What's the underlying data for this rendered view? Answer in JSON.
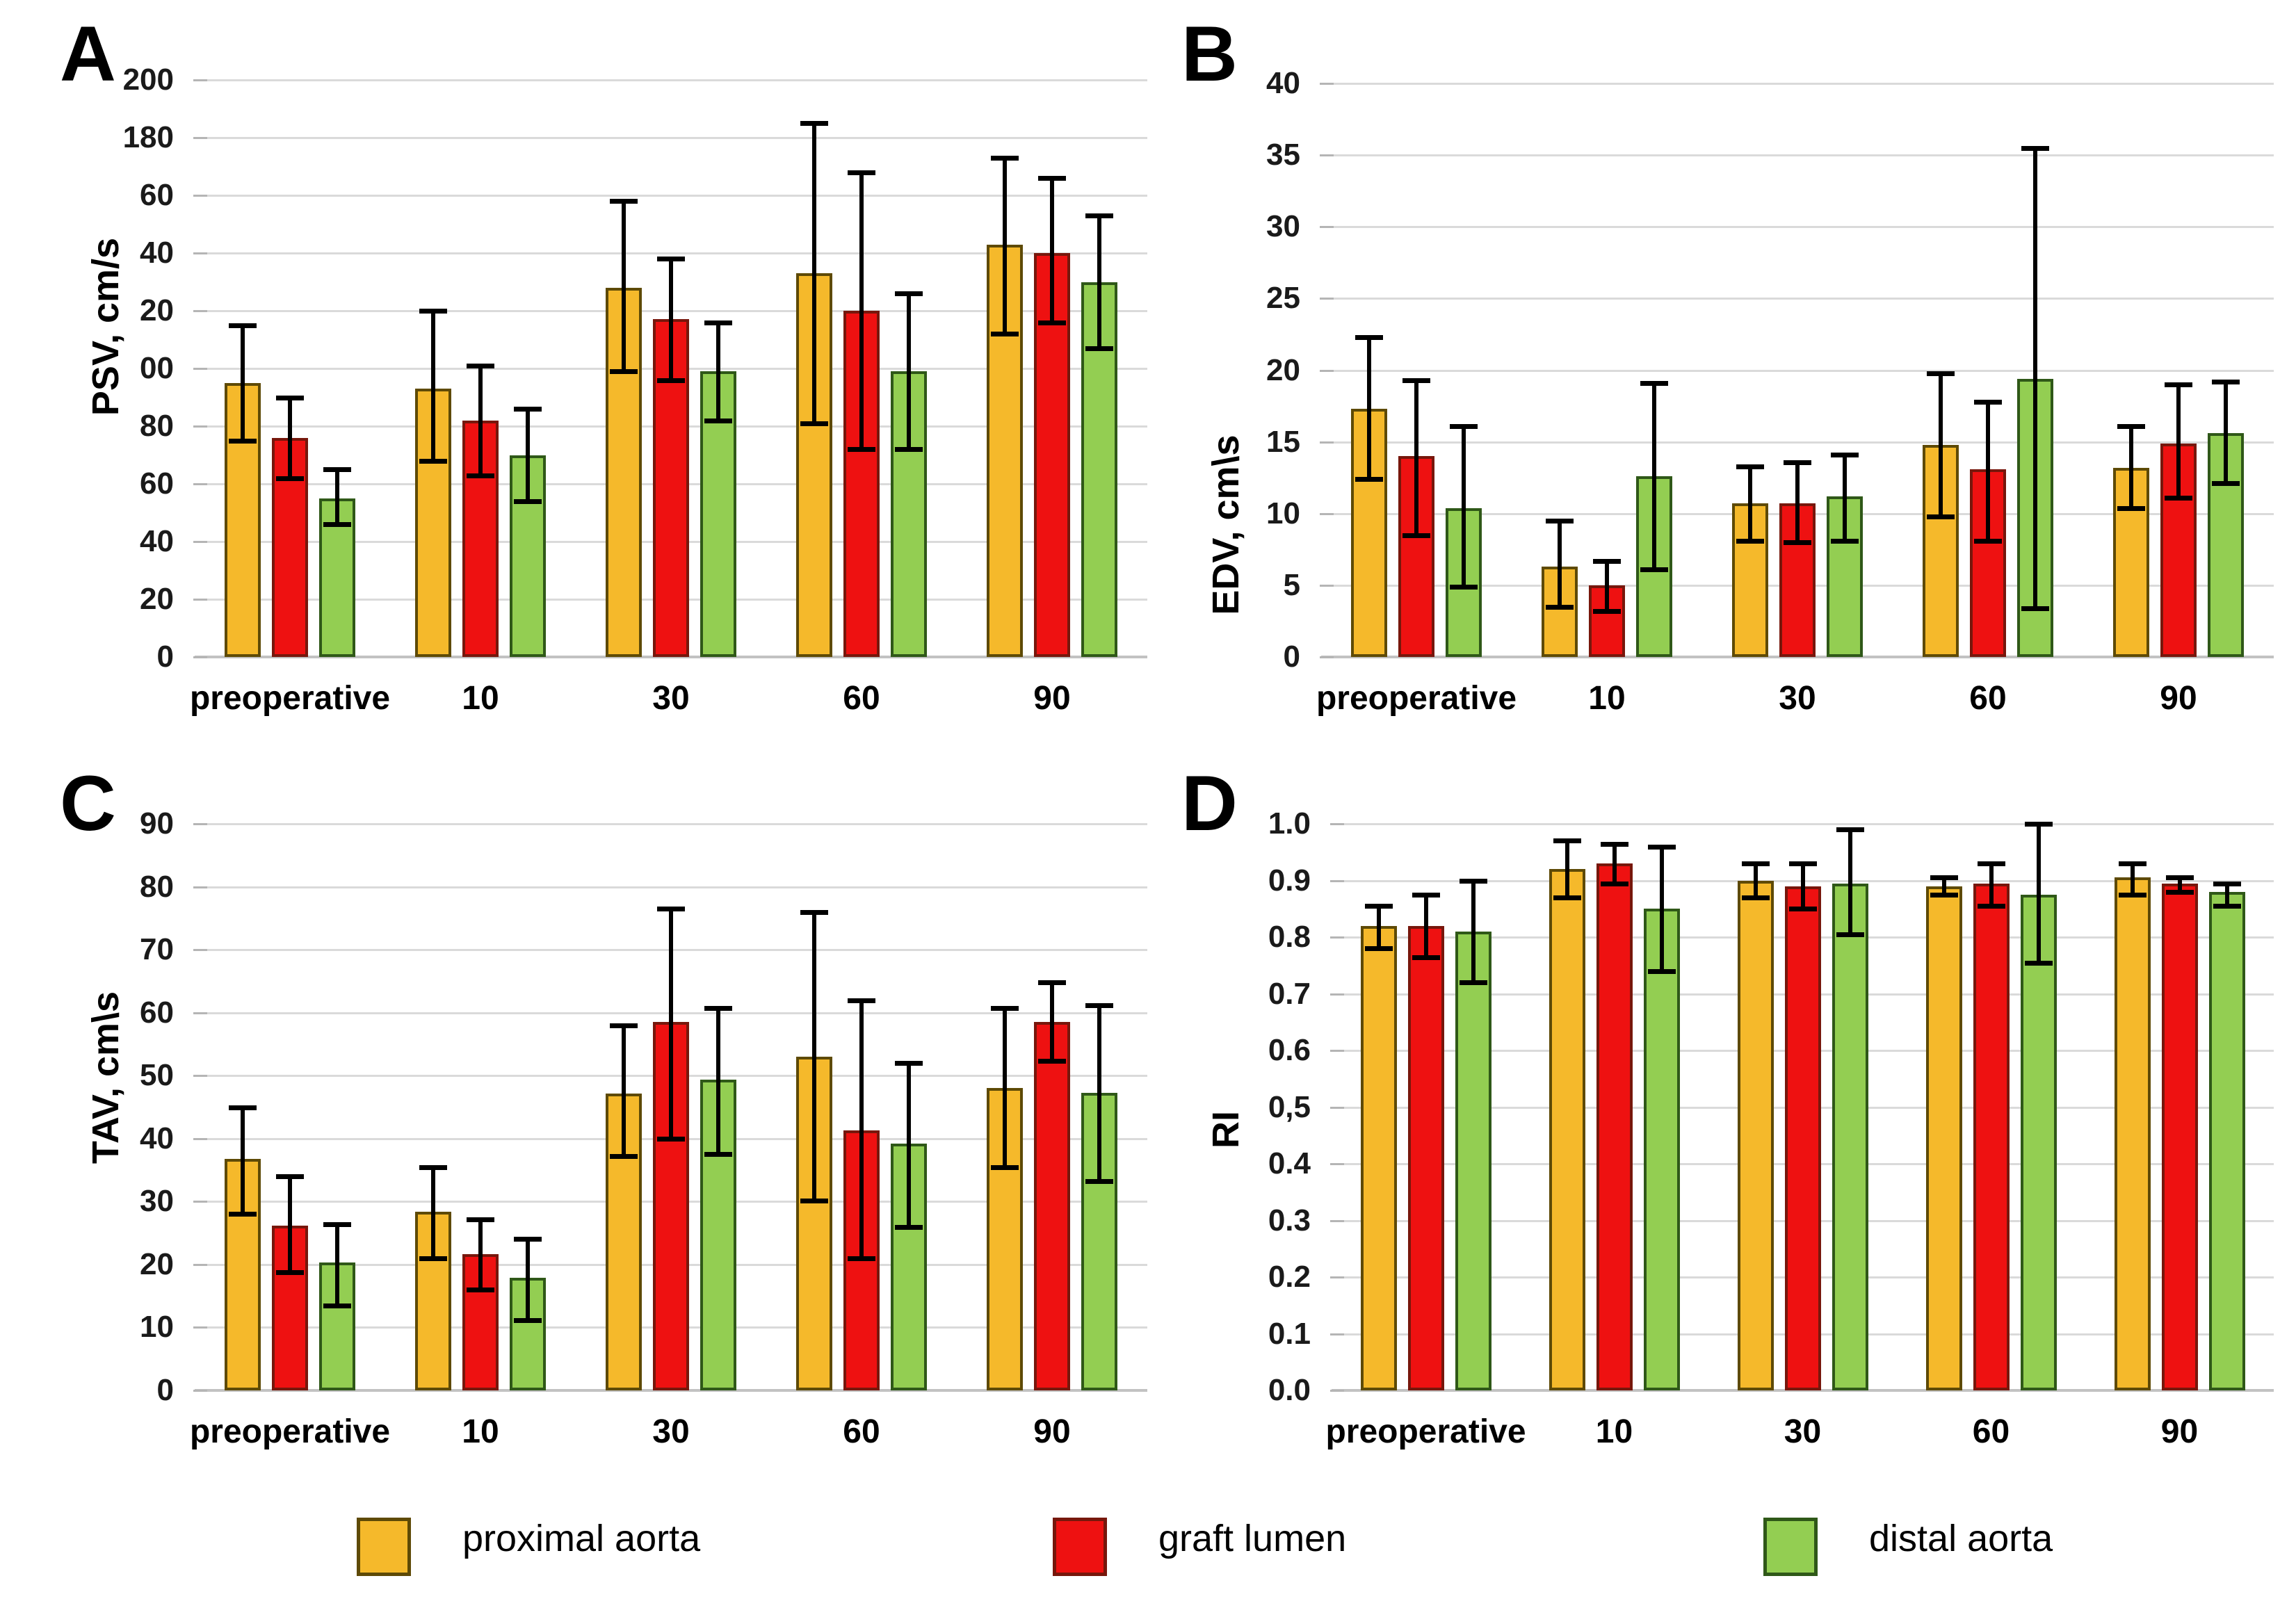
{
  "series_styles": [
    {
      "key": "proximal-aorta",
      "fill": "#F5B92B",
      "border": "#5E4A06"
    },
    {
      "key": "graft-lumen",
      "fill": "#EE1111",
      "border": "#77170C"
    },
    {
      "key": "distal-aorta",
      "fill": "#93CE52",
      "border": "#2F5818"
    }
  ],
  "colors": {
    "gridline": "#dadada",
    "axis_line": "#c2c2c2",
    "error_bar": "#000000",
    "tick_text": "#1a1a1a"
  },
  "legend": {
    "items": [
      {
        "label": "proximal aorta"
      },
      {
        "label": "graft lumen"
      },
      {
        "label": "distal aorta"
      }
    ]
  },
  "chart_data": [
    {
      "type": "bar",
      "panel_label": "A",
      "ylabel": "PSV, cm/s",
      "xlabel": "",
      "ylim": [
        0,
        200
      ],
      "ytick_step": 20,
      "ytick_labels": [
        "200",
        "180",
        "60",
        "40",
        "20",
        "00",
        "80",
        "60",
        "40",
        "20",
        "0"
      ],
      "grid": "horizontal",
      "legend_position": "shared-bottom",
      "categories": [
        "preoperative",
        "10",
        "30",
        "60",
        "90"
      ],
      "series": [
        {
          "name": "proximal aorta",
          "values": [
            95,
            93,
            128,
            133,
            143
          ],
          "err_low": [
            75,
            68,
            99,
            81,
            112
          ],
          "err_high": [
            115,
            120,
            158,
            185,
            173
          ]
        },
        {
          "name": "graft lumen",
          "values": [
            76,
            82,
            117,
            120,
            140
          ],
          "err_low": [
            62,
            63,
            96,
            72,
            116
          ],
          "err_high": [
            90,
            101,
            138,
            168,
            166
          ]
        },
        {
          "name": "distal aorta",
          "values": [
            55,
            70,
            99,
            99,
            130
          ],
          "err_low": [
            46,
            54,
            82,
            72,
            107
          ],
          "err_high": [
            65,
            86,
            116,
            126,
            153
          ]
        }
      ]
    },
    {
      "type": "bar",
      "panel_label": "B",
      "ylabel": "EDV, cm\\s",
      "xlabel": "",
      "ylim": [
        0,
        40
      ],
      "ytick_step": 5,
      "ytick_labels": [
        "40",
        "35",
        "30",
        "25",
        "20",
        "15",
        "10",
        "5",
        "0"
      ],
      "grid": "horizontal",
      "legend_position": "shared-bottom",
      "categories": [
        "preoperative",
        "10",
        "30",
        "60",
        "90"
      ],
      "series": [
        {
          "name": "proximal aorta",
          "values": [
            17.3,
            6.3,
            10.7,
            14.8,
            13.2
          ],
          "err_low": [
            12.4,
            3.5,
            8.1,
            9.8,
            10.4
          ],
          "err_high": [
            22.3,
            9.5,
            13.3,
            19.8,
            16.1
          ]
        },
        {
          "name": "graft lumen",
          "values": [
            14.0,
            5.0,
            10.7,
            13.1,
            14.9
          ],
          "err_low": [
            8.5,
            3.2,
            8.0,
            8.1,
            11.1
          ],
          "err_high": [
            19.3,
            6.7,
            13.6,
            17.8,
            19.0
          ]
        },
        {
          "name": "distal aorta",
          "values": [
            10.4,
            12.6,
            11.2,
            19.4,
            15.6
          ],
          "err_low": [
            4.9,
            6.1,
            8.1,
            3.4,
            12.1
          ],
          "err_high": [
            16.1,
            19.1,
            14.1,
            35.5,
            19.2
          ]
        }
      ]
    },
    {
      "type": "bar",
      "panel_label": "C",
      "ylabel": "TAV, cm\\s",
      "xlabel": "",
      "ylim": [
        0,
        90
      ],
      "ytick_step": 10,
      "ytick_labels": [
        "90",
        "80",
        "70",
        "60",
        "50",
        "40",
        "30",
        "20",
        "10",
        "0"
      ],
      "grid": "horizontal",
      "legend_position": "shared-bottom",
      "categories": [
        "preoperative",
        "10",
        "30",
        "60",
        "90"
      ],
      "series": [
        {
          "name": "proximal aorta",
          "values": [
            36.8,
            28.4,
            47.2,
            53.0,
            48.0
          ],
          "err_low": [
            28.0,
            21.0,
            37.2,
            30.2,
            35.5
          ],
          "err_high": [
            45.0,
            35.5,
            58.0,
            76.0,
            60.7
          ]
        },
        {
          "name": "graft lumen",
          "values": [
            26.2,
            21.6,
            58.5,
            41.3,
            58.5
          ],
          "err_low": [
            18.8,
            16.0,
            40.0,
            21.0,
            52.3
          ],
          "err_high": [
            34.0,
            27.2,
            76.5,
            62.0,
            64.8
          ]
        },
        {
          "name": "distal aorta",
          "values": [
            20.3,
            17.9,
            49.4,
            39.2,
            47.3
          ],
          "err_low": [
            13.5,
            11.2,
            37.5,
            26.0,
            33.2
          ],
          "err_high": [
            26.4,
            24.1,
            60.7,
            52.0,
            61.2
          ]
        }
      ]
    },
    {
      "type": "bar",
      "panel_label": "D",
      "ylabel": "RI",
      "xlabel": "",
      "ylim": [
        0,
        1.0
      ],
      "ytick_step": 0.1,
      "ytick_labels": [
        "1.0",
        "0.9",
        "0.8",
        "0.7",
        "0.6",
        "0,5",
        "0.4",
        "0.3",
        "0.2",
        "0.1",
        "0.0"
      ],
      "grid": "horizontal",
      "legend_position": "shared-bottom",
      "categories": [
        "preoperative",
        "10",
        "30",
        "60",
        "90"
      ],
      "series": [
        {
          "name": "proximal aorta",
          "values": [
            0.82,
            0.92,
            0.9,
            0.89,
            0.905
          ],
          "err_low": [
            0.78,
            0.87,
            0.87,
            0.875,
            0.875
          ],
          "err_high": [
            0.855,
            0.97,
            0.93,
            0.905,
            0.93
          ]
        },
        {
          "name": "graft lumen",
          "values": [
            0.82,
            0.93,
            0.89,
            0.895,
            0.895
          ],
          "err_low": [
            0.765,
            0.895,
            0.85,
            0.855,
            0.88
          ],
          "err_high": [
            0.875,
            0.965,
            0.93,
            0.93,
            0.905
          ]
        },
        {
          "name": "distal aorta",
          "values": [
            0.81,
            0.85,
            0.895,
            0.875,
            0.88
          ],
          "err_low": [
            0.72,
            0.74,
            0.805,
            0.755,
            0.855
          ],
          "err_high": [
            0.9,
            0.96,
            0.99,
            1.0,
            0.895
          ]
        }
      ]
    }
  ]
}
